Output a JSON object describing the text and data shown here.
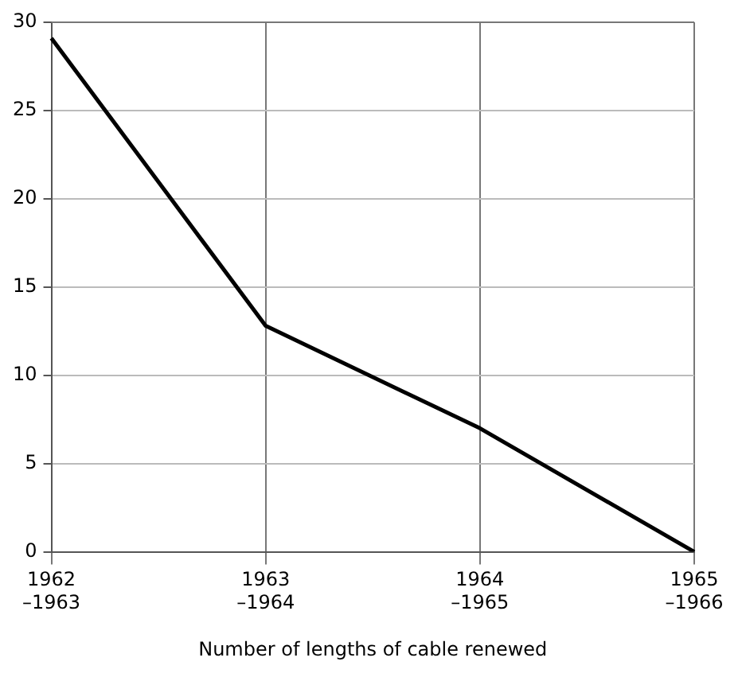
{
  "chart_data": {
    "type": "line",
    "xlabel": "Number of lengths of cable renewed",
    "categories": [
      "1962\n–1963",
      "1963\n–1964",
      "1964\n–1965",
      "1965\n–1966"
    ],
    "values": [
      29.1,
      12.8,
      7.0,
      0
    ],
    "color": "#000000",
    "ylim": [
      0,
      30
    ],
    "yticks": [
      0,
      5,
      10,
      15,
      20,
      25,
      30
    ],
    "grid": true,
    "marker": "none",
    "line_style": "solid"
  }
}
